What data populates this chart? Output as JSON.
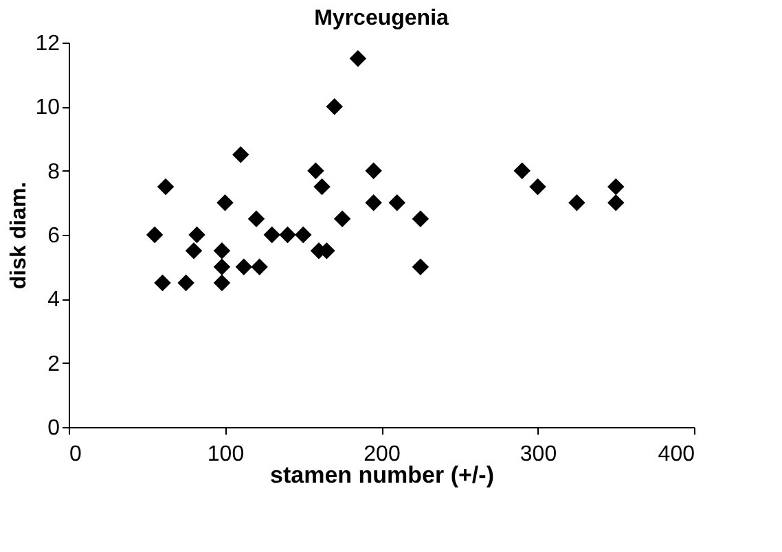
{
  "chart_data": {
    "type": "scatter",
    "title": "Myrceugenia",
    "xlabel": "stamen number (+/-)",
    "ylabel": "disk diam.",
    "marker": "diamond",
    "color": "#000000",
    "x": [
      55,
      60,
      62,
      75,
      80,
      82,
      98,
      98,
      98,
      100,
      110,
      112,
      120,
      122,
      130,
      140,
      150,
      158,
      160,
      162,
      165,
      170,
      175,
      185,
      195,
      195,
      210,
      225,
      225,
      290,
      300,
      325,
      350,
      350
    ],
    "values": [
      6,
      4.5,
      7.5,
      4.5,
      5.5,
      6,
      4.5,
      5,
      5.5,
      7,
      8.5,
      5,
      6.5,
      5,
      6,
      6,
      6,
      8,
      5.5,
      7.5,
      5.5,
      10,
      6.5,
      11.5,
      8,
      7,
      7,
      6.5,
      5,
      8,
      7.5,
      7,
      7.5,
      7
    ],
    "xlim": [
      0,
      400
    ],
    "xticks": [
      0,
      100,
      200,
      300,
      400
    ],
    "ylim": [
      0,
      12
    ],
    "yticks": [
      0,
      2,
      4,
      6,
      8,
      10,
      12
    ],
    "grid": false
  }
}
